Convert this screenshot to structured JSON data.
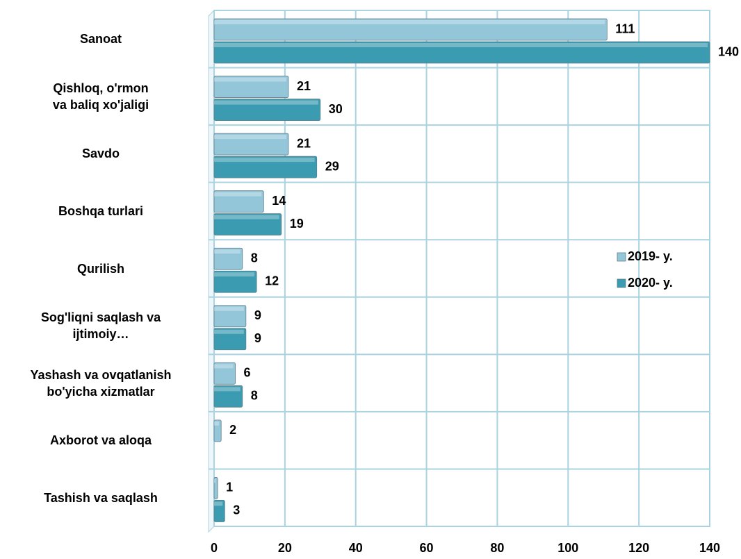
{
  "chart_data": {
    "type": "bar",
    "orientation": "horizontal",
    "categories": [
      "Sanoat",
      "Qishloq, o'rmon\nva baliq xo'jaligi",
      "Savdo",
      "Boshqa turlari",
      "Qurilish",
      "Sog'liqni saqlash va\nijtimoiy…",
      "Yashash va ovqatlanish\nbo'yicha xizmatlar",
      "Axborot va aloqa",
      "Tashish va saqlash"
    ],
    "series": [
      {
        "name": "2019- y.",
        "color": "#93c6d9",
        "values": [
          111,
          21,
          21,
          14,
          8,
          9,
          6,
          2,
          1
        ]
      },
      {
        "name": "2020- y.",
        "color": "#3a9bb1",
        "values": [
          140,
          30,
          29,
          19,
          12,
          9,
          8,
          null,
          3
        ]
      }
    ],
    "xlim": [
      0,
      140
    ],
    "xticks": [
      0,
      20,
      40,
      60,
      80,
      100,
      120,
      140
    ],
    "grid": true,
    "legend": "right"
  }
}
